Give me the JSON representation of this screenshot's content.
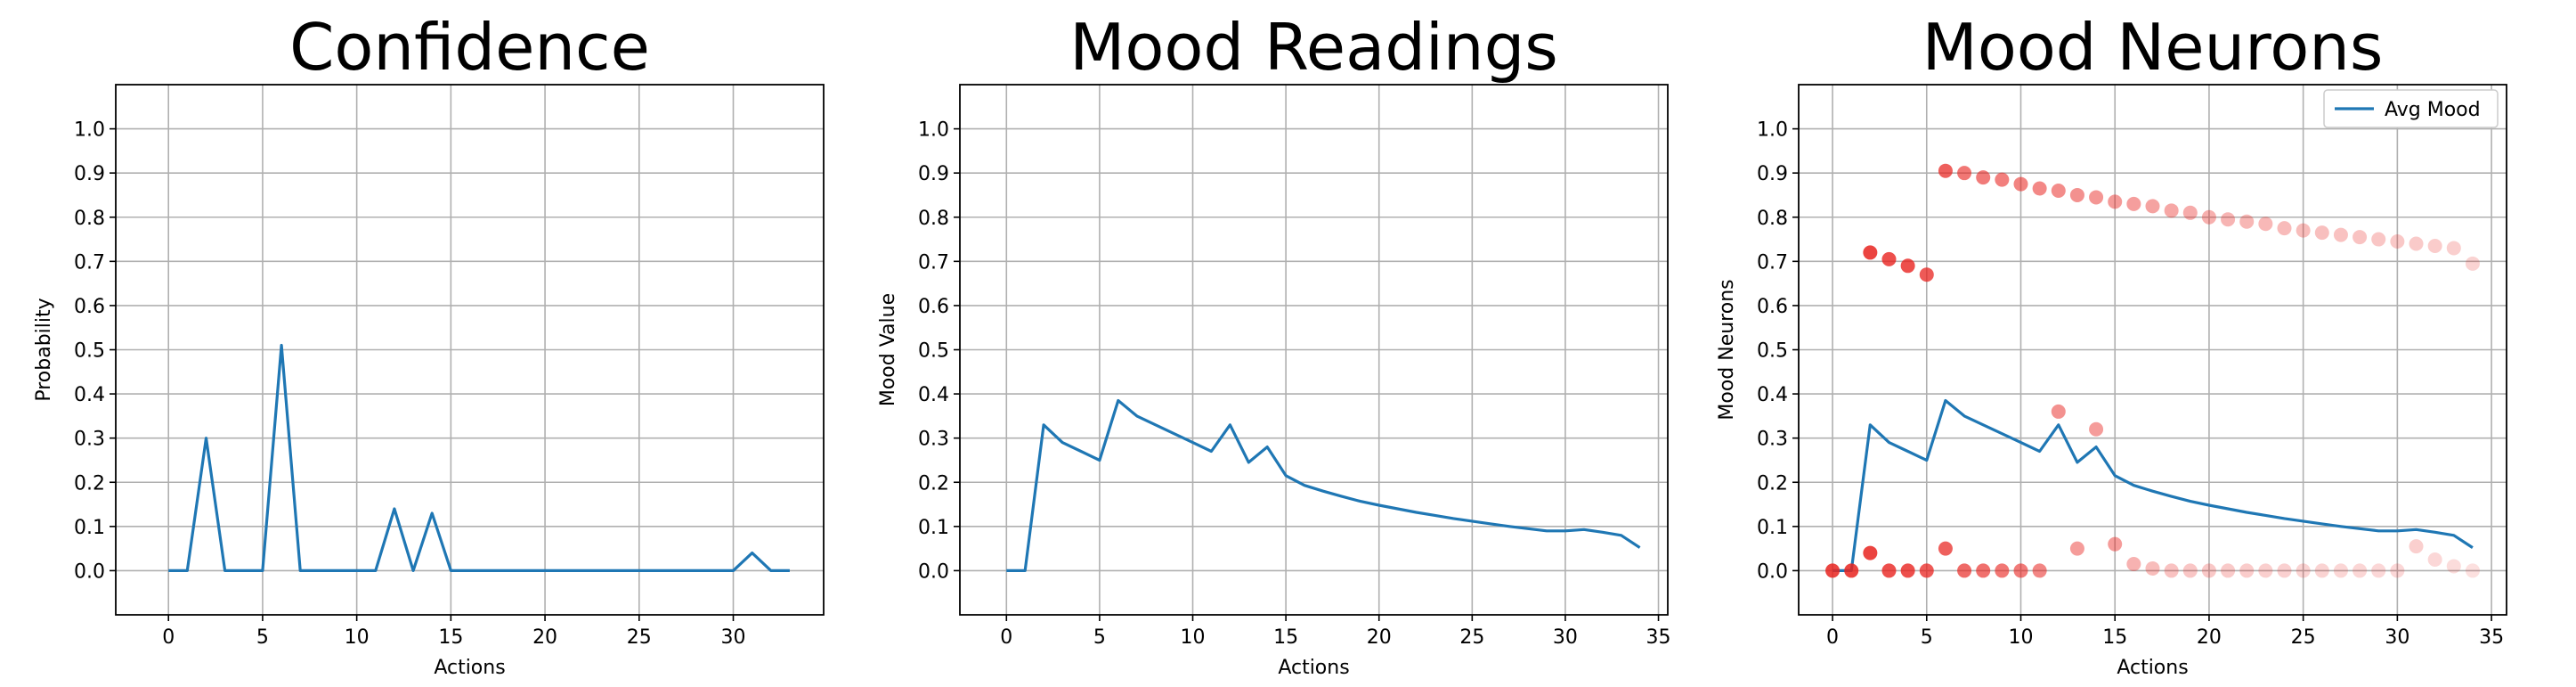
{
  "chart_data": [
    {
      "type": "line",
      "title": "Confidence",
      "xlabel": "Actions",
      "ylabel": "Probability",
      "xlim": [
        -2.8,
        34.8
      ],
      "ylim": [
        -0.1,
        1.1
      ],
      "xticks": [
        0,
        5,
        10,
        15,
        20,
        25,
        30
      ],
      "yticks": [
        0.0,
        0.1,
        0.2,
        0.3,
        0.4,
        0.5,
        0.6,
        0.7,
        0.8,
        0.9,
        1.0
      ],
      "grid": true,
      "series": [
        {
          "color": "#1f77b4",
          "x": [
            0,
            1,
            2,
            3,
            4,
            5,
            6,
            7,
            8,
            9,
            10,
            11,
            12,
            13,
            14,
            15,
            16,
            17,
            18,
            19,
            20,
            21,
            22,
            23,
            24,
            25,
            26,
            27,
            28,
            29,
            30,
            31,
            32,
            33
          ],
          "y": [
            0,
            0,
            0.3,
            0,
            0,
            0,
            0.51,
            0,
            0,
            0,
            0,
            0,
            0.14,
            0,
            0.13,
            0,
            0,
            0,
            0,
            0,
            0,
            0,
            0,
            0,
            0,
            0,
            0,
            0,
            0,
            0,
            0,
            0.04,
            0,
            0
          ]
        }
      ]
    },
    {
      "type": "line",
      "title": "Mood Readings",
      "xlabel": "Actions",
      "ylabel": "Mood Value",
      "xlim": [
        -2.5,
        35.5
      ],
      "ylim": [
        -0.1,
        1.1
      ],
      "xticks": [
        0,
        5,
        10,
        15,
        20,
        25,
        30,
        35
      ],
      "yticks": [
        0.0,
        0.1,
        0.2,
        0.3,
        0.4,
        0.5,
        0.6,
        0.7,
        0.8,
        0.9,
        1.0
      ],
      "grid": true,
      "series": [
        {
          "color": "#1f77b4",
          "x": [
            0,
            1,
            2,
            3,
            4,
            5,
            6,
            7,
            8,
            9,
            10,
            11,
            12,
            13,
            14,
            15,
            16,
            17,
            18,
            19,
            20,
            21,
            22,
            23,
            24,
            25,
            26,
            27,
            28,
            29,
            30,
            31,
            32,
            33,
            34
          ],
          "y": [
            0,
            0,
            0.33,
            0.29,
            0.27,
            0.25,
            0.385,
            0.35,
            0.33,
            0.31,
            0.29,
            0.27,
            0.33,
            0.245,
            0.28,
            0.215,
            0.193,
            0.18,
            0.168,
            0.157,
            0.148,
            0.14,
            0.132,
            0.125,
            0.118,
            0.112,
            0.106,
            0.1,
            0.095,
            0.09,
            0.09,
            0.093,
            0.087,
            0.08,
            0.052
          ]
        }
      ]
    },
    {
      "type": "scatter",
      "title": "Mood Neurons",
      "xlabel": "Actions",
      "ylabel": "Mood Neurons",
      "xlim": [
        -1.8,
        35.8
      ],
      "ylim": [
        -0.1,
        1.1
      ],
      "xticks": [
        0,
        5,
        10,
        15,
        20,
        25,
        30,
        35
      ],
      "yticks": [
        0.0,
        0.1,
        0.2,
        0.3,
        0.4,
        0.5,
        0.6,
        0.7,
        0.8,
        0.9,
        1.0
      ],
      "grid": true,
      "legend": {
        "position": "top-right",
        "entries": [
          "Avg Mood"
        ]
      },
      "line_series": {
        "name": "Avg Mood",
        "color": "#1f77b4",
        "x": [
          0,
          1,
          2,
          3,
          4,
          5,
          6,
          7,
          8,
          9,
          10,
          11,
          12,
          13,
          14,
          15,
          16,
          17,
          18,
          19,
          20,
          21,
          22,
          23,
          24,
          25,
          26,
          27,
          28,
          29,
          30,
          31,
          32,
          33,
          34
        ],
        "y": [
          0,
          0,
          0.33,
          0.29,
          0.27,
          0.25,
          0.385,
          0.35,
          0.33,
          0.31,
          0.29,
          0.27,
          0.33,
          0.245,
          0.28,
          0.215,
          0.193,
          0.18,
          0.168,
          0.157,
          0.148,
          0.14,
          0.132,
          0.125,
          0.118,
          0.112,
          0.106,
          0.1,
          0.095,
          0.09,
          0.09,
          0.093,
          0.087,
          0.08,
          0.052
        ]
      },
      "point_color": "#e8231f",
      "points": [
        {
          "x": 0,
          "y": 0,
          "a": 0.85
        },
        {
          "x": 1,
          "y": 0,
          "a": 0.85
        },
        {
          "x": 2,
          "y": 0.04,
          "a": 0.85
        },
        {
          "x": 2,
          "y": 0.72,
          "a": 0.85
        },
        {
          "x": 3,
          "y": 0,
          "a": 0.8
        },
        {
          "x": 3,
          "y": 0.705,
          "a": 0.8
        },
        {
          "x": 4,
          "y": 0,
          "a": 0.8
        },
        {
          "x": 4,
          "y": 0.69,
          "a": 0.8
        },
        {
          "x": 5,
          "y": 0,
          "a": 0.75
        },
        {
          "x": 5,
          "y": 0.67,
          "a": 0.75
        },
        {
          "x": 6,
          "y": 0.05,
          "a": 0.72
        },
        {
          "x": 6,
          "y": 0.905,
          "a": 0.72
        },
        {
          "x": 7,
          "y": 0,
          "a": 0.68
        },
        {
          "x": 7,
          "y": 0.9,
          "a": 0.62
        },
        {
          "x": 8,
          "y": 0,
          "a": 0.65
        },
        {
          "x": 8,
          "y": 0.89,
          "a": 0.6
        },
        {
          "x": 9,
          "y": 0,
          "a": 0.62
        },
        {
          "x": 9,
          "y": 0.885,
          "a": 0.58
        },
        {
          "x": 10,
          "y": 0,
          "a": 0.6
        },
        {
          "x": 10,
          "y": 0.875,
          "a": 0.56
        },
        {
          "x": 11,
          "y": 0,
          "a": 0.55
        },
        {
          "x": 11,
          "y": 0.865,
          "a": 0.54
        },
        {
          "x": 12,
          "y": 0.36,
          "a": 0.5
        },
        {
          "x": 12,
          "y": 0.86,
          "a": 0.52
        },
        {
          "x": 13,
          "y": 0.05,
          "a": 0.45
        },
        {
          "x": 13,
          "y": 0.85,
          "a": 0.5
        },
        {
          "x": 14,
          "y": 0.32,
          "a": 0.45
        },
        {
          "x": 14,
          "y": 0.845,
          "a": 0.48
        },
        {
          "x": 15,
          "y": 0.06,
          "a": 0.45
        },
        {
          "x": 15,
          "y": 0.835,
          "a": 0.46
        },
        {
          "x": 16,
          "y": 0.015,
          "a": 0.35
        },
        {
          "x": 16,
          "y": 0.83,
          "a": 0.44
        },
        {
          "x": 17,
          "y": 0.005,
          "a": 0.3
        },
        {
          "x": 17,
          "y": 0.825,
          "a": 0.42
        },
        {
          "x": 18,
          "y": 0,
          "a": 0.28
        },
        {
          "x": 18,
          "y": 0.815,
          "a": 0.4
        },
        {
          "x": 19,
          "y": 0,
          "a": 0.26
        },
        {
          "x": 19,
          "y": 0.81,
          "a": 0.38
        },
        {
          "x": 20,
          "y": 0,
          "a": 0.25
        },
        {
          "x": 20,
          "y": 0.8,
          "a": 0.36
        },
        {
          "x": 21,
          "y": 0,
          "a": 0.24
        },
        {
          "x": 21,
          "y": 0.795,
          "a": 0.34
        },
        {
          "x": 22,
          "y": 0,
          "a": 0.23
        },
        {
          "x": 22,
          "y": 0.79,
          "a": 0.33
        },
        {
          "x": 23,
          "y": 0,
          "a": 0.22
        },
        {
          "x": 23,
          "y": 0.785,
          "a": 0.32
        },
        {
          "x": 24,
          "y": 0,
          "a": 0.21
        },
        {
          "x": 24,
          "y": 0.775,
          "a": 0.31
        },
        {
          "x": 25,
          "y": 0,
          "a": 0.2
        },
        {
          "x": 25,
          "y": 0.77,
          "a": 0.3
        },
        {
          "x": 26,
          "y": 0,
          "a": 0.2
        },
        {
          "x": 26,
          "y": 0.765,
          "a": 0.29
        },
        {
          "x": 27,
          "y": 0,
          "a": 0.19
        },
        {
          "x": 27,
          "y": 0.76,
          "a": 0.28
        },
        {
          "x": 28,
          "y": 0,
          "a": 0.19
        },
        {
          "x": 28,
          "y": 0.755,
          "a": 0.27
        },
        {
          "x": 29,
          "y": 0,
          "a": 0.18
        },
        {
          "x": 29,
          "y": 0.75,
          "a": 0.26
        },
        {
          "x": 30,
          "y": 0,
          "a": 0.18
        },
        {
          "x": 30,
          "y": 0.745,
          "a": 0.25
        },
        {
          "x": 31,
          "y": 0.055,
          "a": 0.22
        },
        {
          "x": 31,
          "y": 0.74,
          "a": 0.24
        },
        {
          "x": 32,
          "y": 0.025,
          "a": 0.18
        },
        {
          "x": 32,
          "y": 0.735,
          "a": 0.23
        },
        {
          "x": 33,
          "y": 0.01,
          "a": 0.16
        },
        {
          "x": 33,
          "y": 0.73,
          "a": 0.22
        },
        {
          "x": 34,
          "y": 0,
          "a": 0.14
        },
        {
          "x": 34,
          "y": 0.695,
          "a": 0.2
        }
      ]
    }
  ]
}
